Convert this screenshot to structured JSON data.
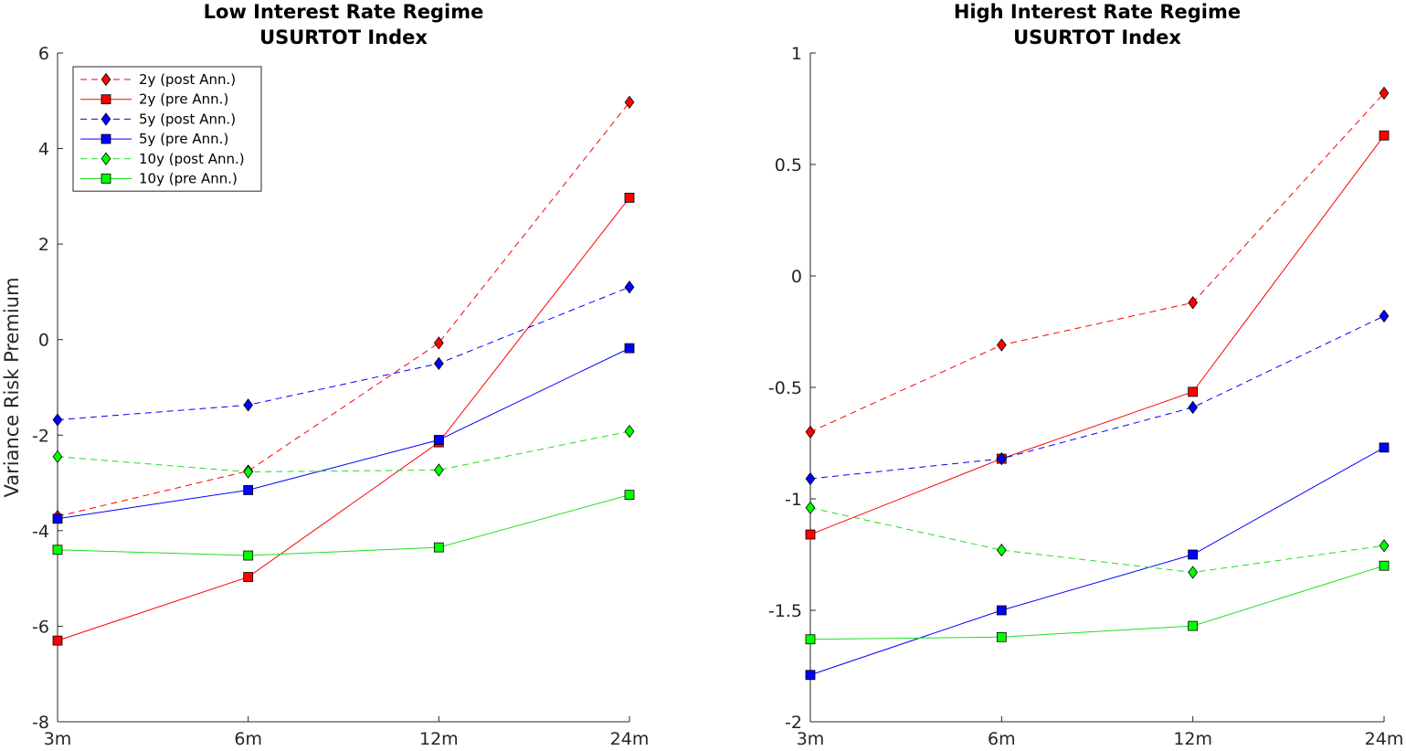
{
  "chart_data": [
    {
      "type": "line",
      "title": [
        "Low Interest Rate Regime",
        "USURTOT Index"
      ],
      "xlabel": "",
      "ylabel": "Variance Risk Premium",
      "categories": [
        "3m",
        "6m",
        "12m",
        "24m"
      ],
      "ylim": [
        -8,
        6
      ],
      "yticks": [
        -8,
        -6,
        -4,
        -2,
        0,
        2,
        4,
        6
      ],
      "grid": false,
      "legend": "top-left",
      "series": [
        {
          "name": "2y (post Ann.)",
          "values": [
            -3.7,
            -2.75,
            -0.07,
            4.97
          ],
          "color": "#ff0000",
          "marker": "diamond",
          "dash": true
        },
        {
          "name": "2y (pre Ann.)",
          "values": [
            -6.3,
            -4.97,
            -2.15,
            2.97
          ],
          "color": "#ff0000",
          "marker": "square",
          "dash": false
        },
        {
          "name": "5y (post Ann.)",
          "values": [
            -1.68,
            -1.37,
            -0.5,
            1.1
          ],
          "color": "#0000ff",
          "marker": "diamond",
          "dash": true
        },
        {
          "name": "5y (pre Ann.)",
          "values": [
            -3.75,
            -3.15,
            -2.1,
            -0.18
          ],
          "color": "#0000ff",
          "marker": "square",
          "dash": false
        },
        {
          "name": "10y (post Ann.)",
          "values": [
            -2.45,
            -2.77,
            -2.73,
            -1.92
          ],
          "color": "#00ff00",
          "marker": "diamond",
          "dash": true
        },
        {
          "name": "10y (pre Ann.)",
          "values": [
            -4.4,
            -4.52,
            -4.35,
            -3.25
          ],
          "color": "#00ff00",
          "marker": "square",
          "dash": false
        }
      ]
    },
    {
      "type": "line",
      "title": [
        "High Interest Rate Regime",
        "USURTOT Index"
      ],
      "xlabel": "",
      "ylabel": "",
      "categories": [
        "3m",
        "6m",
        "12m",
        "24m"
      ],
      "ylim": [
        -2,
        1
      ],
      "yticks": [
        -2,
        -1.5,
        -1,
        -0.5,
        0,
        0.5,
        1
      ],
      "grid": false,
      "legend": "",
      "series": [
        {
          "name": "2y (post Ann.)",
          "values": [
            -0.7,
            -0.31,
            -0.12,
            0.82
          ],
          "color": "#ff0000",
          "marker": "diamond",
          "dash": true
        },
        {
          "name": "2y (pre Ann.)",
          "values": [
            -1.16,
            -0.82,
            -0.52,
            0.63
          ],
          "color": "#ff0000",
          "marker": "square",
          "dash": false
        },
        {
          "name": "5y (post Ann.)",
          "values": [
            -0.91,
            -0.82,
            -0.59,
            -0.18
          ],
          "color": "#0000ff",
          "marker": "diamond",
          "dash": true
        },
        {
          "name": "5y (pre Ann.)",
          "values": [
            -1.79,
            -1.5,
            -1.25,
            -0.77
          ],
          "color": "#0000ff",
          "marker": "square",
          "dash": false
        },
        {
          "name": "10y (post Ann.)",
          "values": [
            -1.04,
            -1.23,
            -1.33,
            -1.21
          ],
          "color": "#00ff00",
          "marker": "diamond",
          "dash": true
        },
        {
          "name": "10y (pre Ann.)",
          "values": [
            -1.63,
            -1.62,
            -1.57,
            -1.3
          ],
          "color": "#00ff00",
          "marker": "square",
          "dash": false
        }
      ]
    }
  ]
}
